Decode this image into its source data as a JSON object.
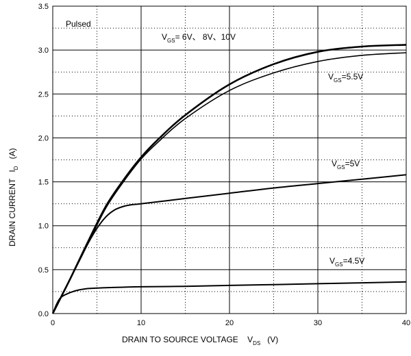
{
  "chart_data": {
    "type": "line",
    "xlabel_main": "DRAIN TO SOURCE VOLTAGE",
    "xlabel_symbol": "V",
    "xlabel_sub": "DS",
    "xlabel_unit": "(V)",
    "ylabel_main": "DRAIN CURRENT",
    "ylabel_symbol": "I",
    "ylabel_sub": "D",
    "ylabel_unit": "(A)",
    "xlim": [
      0,
      40
    ],
    "ylim": [
      0,
      3.5
    ],
    "x_ticks": [
      "0",
      "10",
      "20",
      "30",
      "40"
    ],
    "y_ticks": [
      "0.0",
      "0.5",
      "1.0",
      "1.5",
      "2.0",
      "2.5",
      "3.0",
      "3.5"
    ],
    "grid": {
      "major_solid": true,
      "minor_dotted": true
    },
    "annotations": {
      "pulsed": "Pulsed",
      "vgs_symbol": "V",
      "vgs_sub": "GS",
      "vgs_6_10": "= 6V、 8V、10V",
      "vgs_5_5": "=5.5V",
      "vgs_5": "=5V",
      "vgs_4_5": "=4.5V"
    },
    "series": [
      {
        "x": [
          0,
          1,
          2,
          4,
          6,
          8,
          10,
          12,
          15,
          20,
          25,
          30,
          35,
          40
        ],
        "y": [
          0,
          0.2,
          0.4,
          0.82,
          1.22,
          1.52,
          1.78,
          1.99,
          2.26,
          2.61,
          2.84,
          2.98,
          3.04,
          3.06
        ]
      },
      {
        "x": [
          0,
          1,
          2,
          4,
          6,
          8,
          10,
          12,
          15,
          20,
          25,
          30,
          35,
          40
        ],
        "y": [
          0,
          0.2,
          0.4,
          0.8,
          1.2,
          1.5,
          1.76,
          1.96,
          2.22,
          2.54,
          2.74,
          2.87,
          2.94,
          2.97
        ]
      },
      {
        "x": [
          0,
          1,
          2,
          3,
          4,
          5,
          6,
          7,
          8,
          9,
          10,
          15,
          20,
          25,
          30,
          35,
          40
        ],
        "y": [
          0,
          0.2,
          0.4,
          0.6,
          0.8,
          0.97,
          1.1,
          1.18,
          1.22,
          1.24,
          1.25,
          1.31,
          1.37,
          1.43,
          1.48,
          1.53,
          1.58
        ]
      },
      {
        "x": [
          0,
          0.5,
          1,
          2,
          3,
          4,
          5,
          6,
          8,
          10,
          15,
          20,
          25,
          30,
          35,
          40
        ],
        "y": [
          0,
          0.12,
          0.19,
          0.24,
          0.27,
          0.285,
          0.29,
          0.295,
          0.3,
          0.305,
          0.31,
          0.32,
          0.33,
          0.34,
          0.35,
          0.36
        ]
      }
    ]
  }
}
